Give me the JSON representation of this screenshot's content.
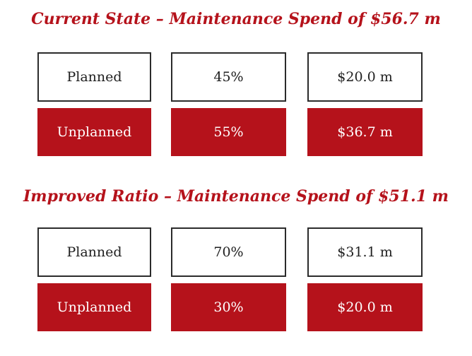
{
  "accent_color": "#b5121b",
  "sections": [
    {
      "title": "Current State – Maintenance Spend of $56.7 m",
      "rows": [
        {
          "kind": "planned",
          "label": "Planned",
          "percent": "45%",
          "amount": "$20.0 m"
        },
        {
          "kind": "unplanned",
          "label": "Unplanned",
          "percent": "55%",
          "amount": "$36.7 m"
        }
      ]
    },
    {
      "title": "Improved Ratio – Maintenance Spend of $51.1 m",
      "rows": [
        {
          "kind": "planned",
          "label": "Planned",
          "percent": "70%",
          "amount": "$31.1 m"
        },
        {
          "kind": "unplanned",
          "label": "Unplanned",
          "percent": "30%",
          "amount": "$20.0 m"
        }
      ]
    }
  ]
}
